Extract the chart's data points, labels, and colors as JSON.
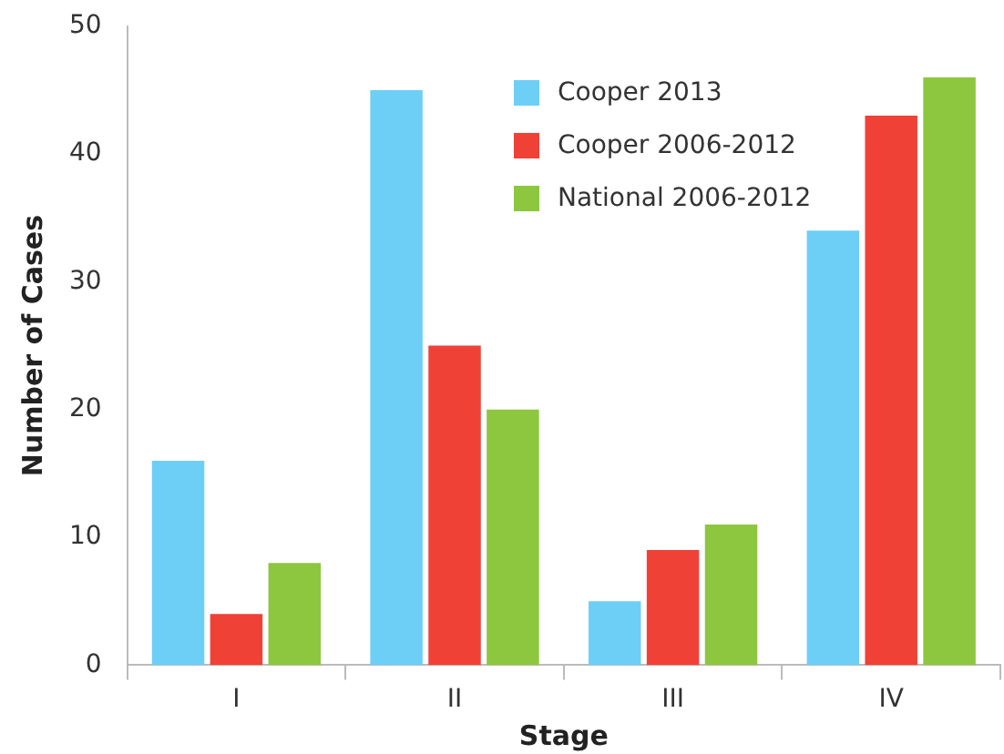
{
  "chart_data": {
    "type": "bar",
    "xlabel": "Stage",
    "ylabel": "Number of Cases",
    "categories": [
      "I",
      "II",
      "III",
      "IV"
    ],
    "series": [
      {
        "name": "Cooper 2013",
        "color": "#6dcff6",
        "values": [
          16,
          45,
          5,
          34
        ]
      },
      {
        "name": "Cooper 2006-2012",
        "color": "#ef4136",
        "values": [
          4,
          25,
          9,
          43
        ]
      },
      {
        "name": "National 2006-2012",
        "color": "#8dc63f",
        "values": [
          8,
          20,
          11,
          46
        ]
      }
    ],
    "ylim": [
      0,
      50
    ],
    "yticks": [
      0,
      10,
      20,
      30,
      40,
      50
    ],
    "grid": false,
    "legend": "top right"
  }
}
